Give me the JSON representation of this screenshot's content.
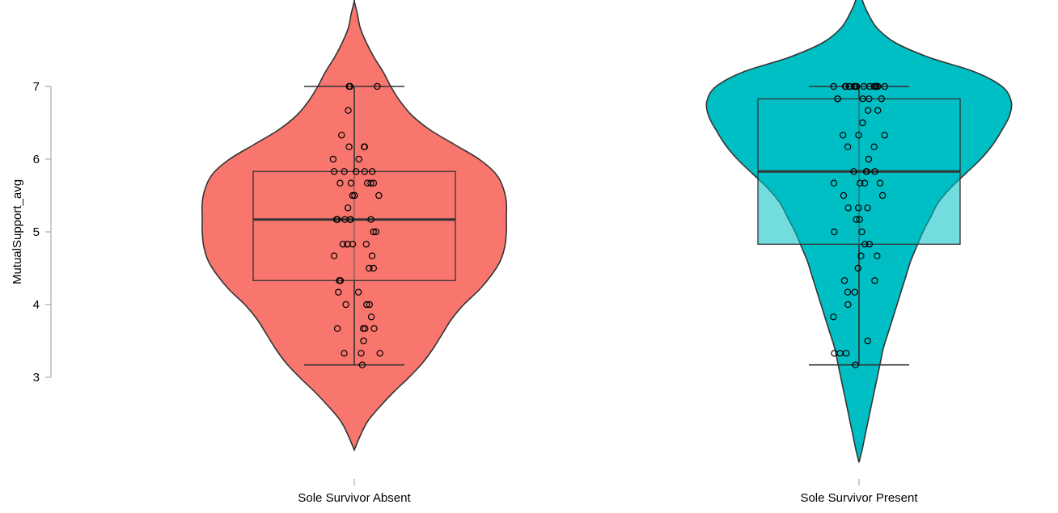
{
  "chart_data": {
    "type": "violin",
    "title": "",
    "xlabel": "",
    "ylabel": "MutualSupport_avg",
    "ylim": [
      1.9,
      8.1
    ],
    "yticks": [
      3,
      4,
      5,
      6,
      7
    ],
    "grid": false,
    "legend": "none",
    "categories": [
      "Sole Survivor Absent",
      "Sole Survivor Present"
    ],
    "groups": [
      {
        "category": "Sole Survivor Absent",
        "color": "#F8766D",
        "box": {
          "whisker_low": 3.17,
          "q1": 4.33,
          "median": 5.17,
          "q3": 5.83,
          "whisker_high": 7.0
        },
        "violin_extent": [
          2.0,
          8.17
        ],
        "density": [
          [
            2.0,
            0.0
          ],
          [
            2.2,
            0.04
          ],
          [
            2.4,
            0.09
          ],
          [
            2.6,
            0.17
          ],
          [
            2.8,
            0.26
          ],
          [
            3.0,
            0.36
          ],
          [
            3.2,
            0.45
          ],
          [
            3.4,
            0.52
          ],
          [
            3.6,
            0.58
          ],
          [
            3.8,
            0.64
          ],
          [
            4.0,
            0.72
          ],
          [
            4.2,
            0.82
          ],
          [
            4.4,
            0.9
          ],
          [
            4.6,
            0.96
          ],
          [
            4.8,
            0.99
          ],
          [
            5.0,
            1.0
          ],
          [
            5.2,
            1.0
          ],
          [
            5.4,
            1.0
          ],
          [
            5.6,
            0.98
          ],
          [
            5.8,
            0.93
          ],
          [
            6.0,
            0.82
          ],
          [
            6.2,
            0.66
          ],
          [
            6.4,
            0.5
          ],
          [
            6.6,
            0.38
          ],
          [
            6.8,
            0.3
          ],
          [
            7.0,
            0.24
          ],
          [
            7.2,
            0.19
          ],
          [
            7.4,
            0.13
          ],
          [
            7.6,
            0.08
          ],
          [
            7.8,
            0.04
          ],
          [
            8.0,
            0.02
          ],
          [
            8.17,
            0.0
          ]
        ],
        "points": [
          3.17,
          3.33,
          3.33,
          3.33,
          3.5,
          3.67,
          3.67,
          3.67,
          3.67,
          3.83,
          4.0,
          4.0,
          4.0,
          4.17,
          4.17,
          4.33,
          4.33,
          4.5,
          4.5,
          4.67,
          4.67,
          4.83,
          4.83,
          4.83,
          4.83,
          4.83,
          5.0,
          5.0,
          5.17,
          5.17,
          5.17,
          5.17,
          5.17,
          5.17,
          5.33,
          5.5,
          5.5,
          5.5,
          5.67,
          5.67,
          5.67,
          5.67,
          5.67,
          5.83,
          5.83,
          5.83,
          5.83,
          5.83,
          6.0,
          6.0,
          6.17,
          6.17,
          6.17,
          6.33,
          6.67,
          7.0,
          7.0,
          7.0
        ]
      },
      {
        "category": "Sole Survivor Present",
        "color": "#00BFC4",
        "box": {
          "whisker_low": 3.17,
          "q1": 4.83,
          "median": 5.83,
          "q3": 6.83,
          "whisker_high": 7.0
        },
        "violin_extent": [
          1.83,
          8.43
        ],
        "density": [
          [
            1.83,
            0.0
          ],
          [
            2.0,
            0.02
          ],
          [
            2.2,
            0.04
          ],
          [
            2.4,
            0.06
          ],
          [
            2.6,
            0.08
          ],
          [
            2.8,
            0.1
          ],
          [
            3.0,
            0.12
          ],
          [
            3.2,
            0.14
          ],
          [
            3.4,
            0.16
          ],
          [
            3.6,
            0.19
          ],
          [
            3.8,
            0.22
          ],
          [
            4.0,
            0.25
          ],
          [
            4.2,
            0.28
          ],
          [
            4.4,
            0.31
          ],
          [
            4.6,
            0.34
          ],
          [
            4.8,
            0.38
          ],
          [
            5.0,
            0.42
          ],
          [
            5.2,
            0.47
          ],
          [
            5.4,
            0.52
          ],
          [
            5.6,
            0.6
          ],
          [
            5.8,
            0.7
          ],
          [
            6.0,
            0.8
          ],
          [
            6.2,
            0.88
          ],
          [
            6.4,
            0.94
          ],
          [
            6.6,
            0.99
          ],
          [
            6.8,
            1.0
          ],
          [
            7.0,
            0.94
          ],
          [
            7.2,
            0.76
          ],
          [
            7.4,
            0.46
          ],
          [
            7.6,
            0.24
          ],
          [
            7.8,
            0.12
          ],
          [
            8.0,
            0.06
          ],
          [
            8.2,
            0.02
          ],
          [
            8.43,
            0.0
          ]
        ],
        "points": [
          3.17,
          3.33,
          3.33,
          3.33,
          3.5,
          3.83,
          4.0,
          4.17,
          4.17,
          4.33,
          4.33,
          4.5,
          4.67,
          4.67,
          4.83,
          4.83,
          5.0,
          5.0,
          5.17,
          5.17,
          5.33,
          5.33,
          5.33,
          5.5,
          5.5,
          5.67,
          5.67,
          5.67,
          5.67,
          5.83,
          5.83,
          5.83,
          5.83,
          6.0,
          6.17,
          6.17,
          6.33,
          6.33,
          6.33,
          6.5,
          6.67,
          6.67,
          6.83,
          6.83,
          6.83,
          6.83,
          6.83,
          7.0,
          7.0,
          7.0,
          7.0,
          7.0,
          7.0,
          7.0,
          7.0,
          7.0,
          7.0,
          7.0,
          7.0,
          7.0,
          7.0,
          7.0,
          7.0,
          7.0
        ]
      }
    ]
  }
}
